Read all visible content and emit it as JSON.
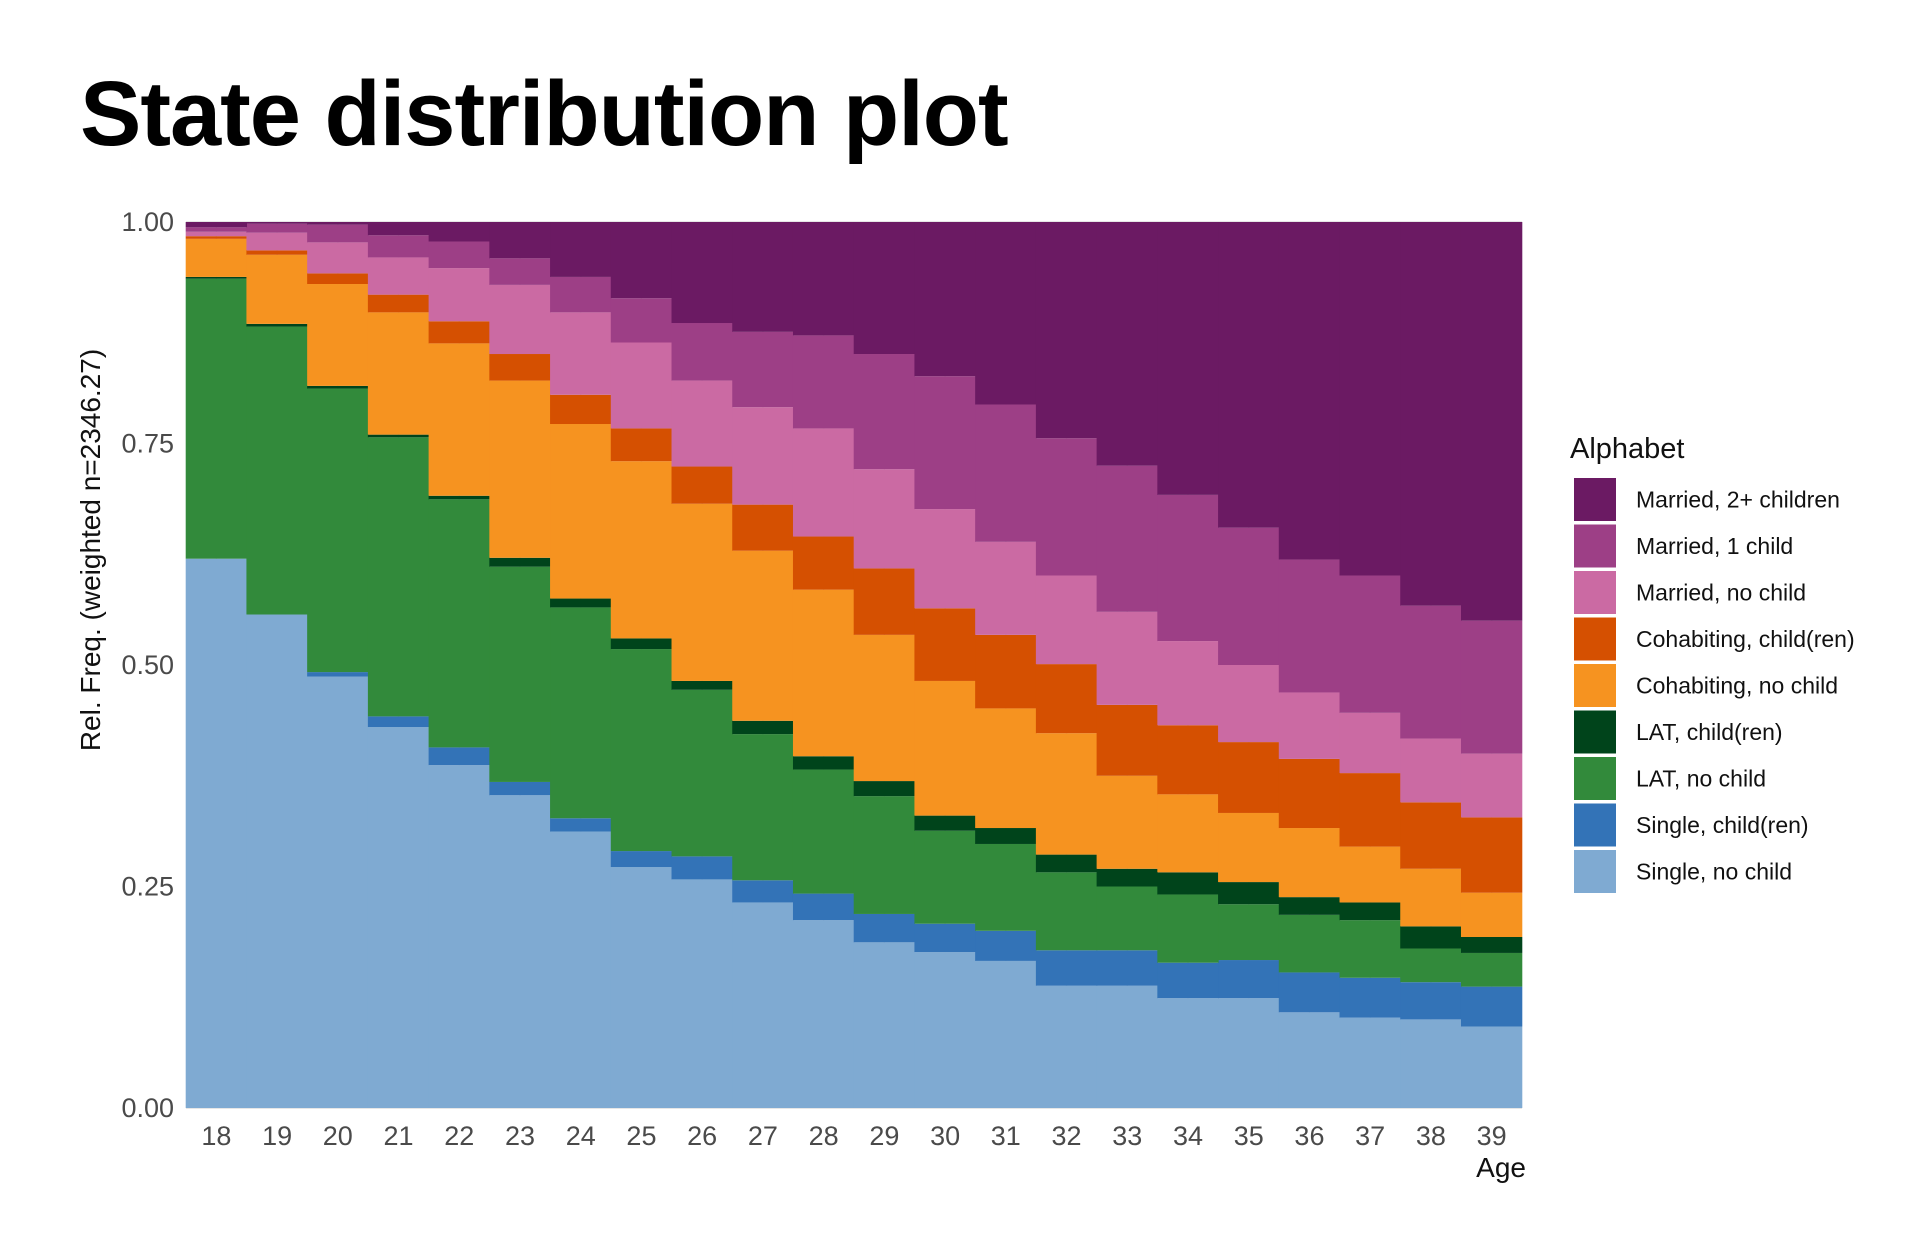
{
  "chart_data": {
    "type": "area",
    "title": "State distribution plot",
    "xlabel": "Age",
    "ylabel": "Rel. Freq. (weighted n=2346.27)",
    "ylim": [
      0,
      1
    ],
    "yticks": [
      "0.00",
      "0.25",
      "0.50",
      "0.75",
      "1.00"
    ],
    "x": [
      "18",
      "19",
      "20",
      "21",
      "22",
      "23",
      "24",
      "25",
      "26",
      "27",
      "28",
      "29",
      "30",
      "31",
      "32",
      "33",
      "34",
      "35",
      "36",
      "37",
      "38",
      "39"
    ],
    "grid": true,
    "legend": {
      "title": "Alphabet",
      "position": "right"
    },
    "series": [
      {
        "name": "Single, no child",
        "color": "#7faad2",
        "values": [
          0.62,
          0.557,
          0.487,
          0.43,
          0.387,
          0.353,
          0.312,
          0.272,
          0.258,
          0.232,
          0.212,
          0.187,
          0.176,
          0.166,
          0.138,
          0.138,
          0.124,
          0.124,
          0.108,
          0.102,
          0.1,
          0.092
        ]
      },
      {
        "name": "Single, child(ren)",
        "color": "#3373b7",
        "values": [
          0.0,
          0.0,
          0.005,
          0.012,
          0.02,
          0.015,
          0.015,
          0.018,
          0.026,
          0.025,
          0.03,
          0.032,
          0.032,
          0.034,
          0.04,
          0.04,
          0.04,
          0.043,
          0.045,
          0.045,
          0.042,
          0.045
        ]
      },
      {
        "name": "LAT, no child",
        "color": "#328a3b",
        "values": [
          0.316,
          0.325,
          0.32,
          0.315,
          0.28,
          0.243,
          0.238,
          0.228,
          0.188,
          0.165,
          0.14,
          0.133,
          0.105,
          0.098,
          0.088,
          0.072,
          0.077,
          0.063,
          0.065,
          0.065,
          0.038,
          0.038
        ]
      },
      {
        "name": "LAT, child(ren)",
        "color": "#00441b",
        "values": [
          0.002,
          0.003,
          0.003,
          0.003,
          0.004,
          0.01,
          0.01,
          0.012,
          0.01,
          0.015,
          0.015,
          0.017,
          0.017,
          0.018,
          0.02,
          0.02,
          0.025,
          0.025,
          0.02,
          0.02,
          0.025,
          0.018
        ]
      },
      {
        "name": "Cohabiting, no child",
        "color": "#f69320",
        "values": [
          0.043,
          0.078,
          0.115,
          0.138,
          0.172,
          0.2,
          0.197,
          0.2,
          0.2,
          0.192,
          0.188,
          0.165,
          0.152,
          0.135,
          0.137,
          0.105,
          0.088,
          0.078,
          0.078,
          0.063,
          0.065,
          0.05
        ]
      },
      {
        "name": "Cohabiting, child(ren)",
        "color": "#d55001",
        "values": [
          0.003,
          0.005,
          0.012,
          0.02,
          0.025,
          0.03,
          0.033,
          0.037,
          0.042,
          0.052,
          0.06,
          0.075,
          0.082,
          0.083,
          0.078,
          0.08,
          0.078,
          0.08,
          0.078,
          0.083,
          0.075,
          0.085
        ]
      },
      {
        "name": "Married, no child",
        "color": "#cb6aa3",
        "values": [
          0.005,
          0.02,
          0.035,
          0.042,
          0.06,
          0.078,
          0.093,
          0.097,
          0.097,
          0.11,
          0.122,
          0.112,
          0.112,
          0.105,
          0.1,
          0.105,
          0.095,
          0.087,
          0.075,
          0.068,
          0.072,
          0.072
        ]
      },
      {
        "name": "Married, 1 child",
        "color": "#9d3f86",
        "values": [
          0.005,
          0.01,
          0.02,
          0.025,
          0.03,
          0.03,
          0.04,
          0.05,
          0.065,
          0.085,
          0.105,
          0.13,
          0.15,
          0.155,
          0.155,
          0.165,
          0.165,
          0.155,
          0.15,
          0.155,
          0.15,
          0.15
        ]
      },
      {
        "name": "Married, 2+ children",
        "color": "#6b1a63",
        "values": [
          0.006,
          0.002,
          0.003,
          0.015,
          0.022,
          0.041,
          0.062,
          0.086,
          0.114,
          0.124,
          0.128,
          0.149,
          0.174,
          0.206,
          0.244,
          0.275,
          0.308,
          0.345,
          0.381,
          0.399,
          0.433,
          0.45
        ]
      }
    ]
  }
}
